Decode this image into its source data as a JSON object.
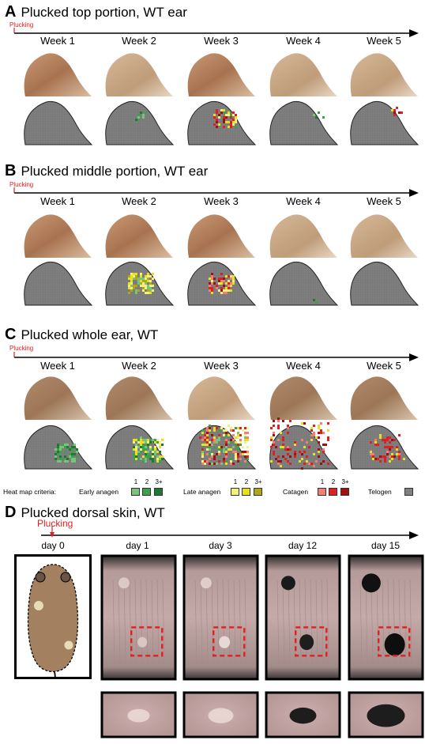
{
  "panels": {
    "A": {
      "letter": "A",
      "title": "Plucked top portion, WT ear"
    },
    "B": {
      "letter": "B",
      "title": "Plucked middle portion, WT ear"
    },
    "C": {
      "letter": "C",
      "title": "Plucked whole ear, WT"
    },
    "D": {
      "letter": "D",
      "title": "Plucked dorsal skin, WT"
    }
  },
  "plucking_label": "Plucking",
  "weeks": [
    "Week 1",
    "Week 2",
    "Week 3",
    "Week 4",
    "Week 5"
  ],
  "days": [
    "day 0",
    "day 1",
    "day 3",
    "day 12",
    "day 15"
  ],
  "legend": {
    "criteria": "Heat map criteria:",
    "early": "Early anagen",
    "late": "Late anagen",
    "catagen": "Catagen",
    "telogen": "Telogen",
    "levels": [
      "1",
      "2",
      "3+"
    ]
  },
  "colors": {
    "telogen": "#808080",
    "early": [
      "#7ac47a",
      "#3aa24a",
      "#1e7a30"
    ],
    "late": [
      "#f4f07a",
      "#e6e020",
      "#b0a816"
    ],
    "catagen": [
      "#f08070",
      "#e02020",
      "#a01010"
    ],
    "ear_skin": "#b98560",
    "mark": "#e02020"
  }
}
